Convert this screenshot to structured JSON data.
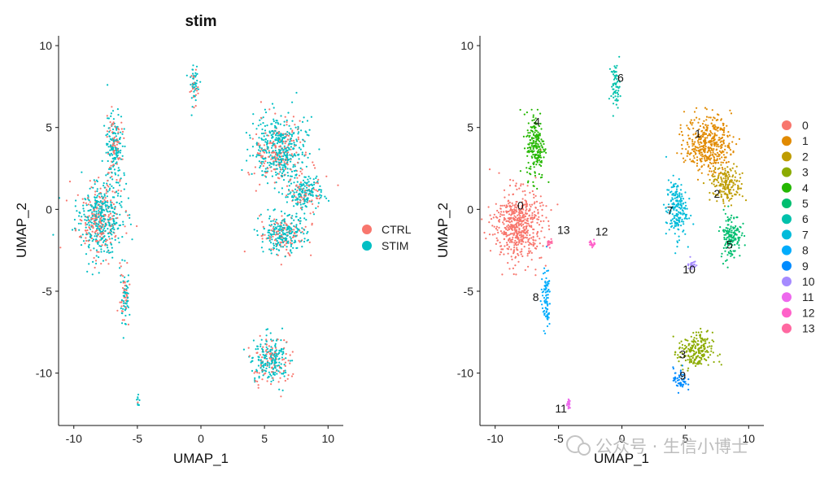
{
  "chart_data": [
    {
      "type": "scatter",
      "title": "stim",
      "xlabel": "UMAP_1",
      "ylabel": "UMAP_2",
      "xlim": [
        -11.2,
        11.2
      ],
      "ylim": [
        -13.2,
        10.6
      ],
      "xticks": [
        -10,
        -5,
        0,
        5,
        10
      ],
      "yticks": [
        -10,
        -5,
        0,
        5,
        10
      ],
      "xtick_labels": [
        "-10",
        "-5",
        "0",
        "5",
        "10"
      ],
      "ytick_labels": [
        "-10",
        "-5",
        "0",
        "5",
        "10"
      ],
      "grid": false,
      "legend_position": "right",
      "legend": [
        {
          "label": "CTRL",
          "color": "#F8766D"
        },
        {
          "label": "STIM",
          "color": "#00BFC4"
        }
      ],
      "regions": [
        {
          "name": "left-mass",
          "cx": -8.0,
          "cy": -0.6,
          "rx": 2.0,
          "ry": 2.5,
          "ctrl_share": 0.35
        },
        {
          "name": "left-upper-arm",
          "cx": -6.8,
          "cy": 3.8,
          "rx": 0.8,
          "ry": 2.4,
          "ctrl_share": 0.3
        },
        {
          "name": "left-tail",
          "cx": -6.0,
          "cy": -5.5,
          "rx": 0.4,
          "ry": 2.0,
          "ctrl_share": 0.4
        },
        {
          "name": "top-blob",
          "cx": -0.5,
          "cy": 7.6,
          "rx": 0.4,
          "ry": 1.4,
          "ctrl_share": 0.3
        },
        {
          "name": "right-upper",
          "cx": 6.2,
          "cy": 3.6,
          "rx": 2.2,
          "ry": 2.3,
          "ctrl_share": 0.3
        },
        {
          "name": "right-band",
          "cx": 8.2,
          "cy": 1.0,
          "rx": 1.5,
          "ry": 1.3,
          "ctrl_share": 0.3
        },
        {
          "name": "right-low",
          "cx": 6.5,
          "cy": -1.5,
          "rx": 2.0,
          "ry": 1.4,
          "ctrl_share": 0.3
        },
        {
          "name": "bottom-cluster",
          "cx": 5.5,
          "cy": -9.2,
          "rx": 1.6,
          "ry": 1.6,
          "ctrl_share": 0.35
        },
        {
          "name": "small-bottom",
          "cx": -4.9,
          "cy": -11.8,
          "rx": 0.2,
          "ry": 0.4,
          "ctrl_share": 0.3
        }
      ]
    },
    {
      "type": "scatter",
      "title": "",
      "xlabel": "UMAP_1",
      "ylabel": "UMAP_2",
      "xlim": [
        -11.2,
        11.2
      ],
      "ylim": [
        -13.2,
        10.6
      ],
      "xticks": [
        -10,
        -5,
        0,
        5,
        10
      ],
      "yticks": [
        -10,
        -5,
        0,
        5,
        10
      ],
      "xtick_labels": [
        "-10",
        "-5",
        "0",
        "5",
        "10"
      ],
      "ytick_labels": [
        "-10",
        "-5",
        "0",
        "5",
        "10"
      ],
      "grid": false,
      "legend_position": "right",
      "legend": [
        {
          "label": "0",
          "color": "#F8766D"
        },
        {
          "label": "1",
          "color": "#E18A00"
        },
        {
          "label": "2",
          "color": "#BE9C00"
        },
        {
          "label": "3",
          "color": "#8CAB00"
        },
        {
          "label": "4",
          "color": "#24B700"
        },
        {
          "label": "5",
          "color": "#00BE70"
        },
        {
          "label": "6",
          "color": "#00C1AB"
        },
        {
          "label": "7",
          "color": "#00BBDA"
        },
        {
          "label": "8",
          "color": "#00ACFC"
        },
        {
          "label": "9",
          "color": "#008BFF"
        },
        {
          "label": "10",
          "color": "#A58AFF"
        },
        {
          "label": "11",
          "color": "#ED68ED"
        },
        {
          "label": "12",
          "color": "#FF61C9"
        },
        {
          "label": "13",
          "color": "#FF68A1"
        }
      ],
      "clusters": [
        {
          "id": "0",
          "cx": -8.2,
          "cy": -1.0,
          "rx": 2.1,
          "ry": 2.4,
          "label_x": -8.0,
          "label_y": 0.0
        },
        {
          "id": "1",
          "cx": 6.8,
          "cy": 4.0,
          "rx": 2.0,
          "ry": 1.9,
          "label_x": 6.0,
          "label_y": 4.4
        },
        {
          "id": "2",
          "cx": 8.3,
          "cy": 1.5,
          "rx": 1.4,
          "ry": 1.2,
          "label_x": 7.5,
          "label_y": 0.7
        },
        {
          "id": "3",
          "cx": 5.8,
          "cy": -8.7,
          "rx": 1.5,
          "ry": 1.3,
          "label_x": 4.8,
          "label_y": -9.1
        },
        {
          "id": "4",
          "cx": -6.8,
          "cy": 3.9,
          "rx": 0.8,
          "ry": 2.3,
          "label_x": -6.7,
          "label_y": 5.1
        },
        {
          "id": "5",
          "cx": 8.6,
          "cy": -1.6,
          "rx": 0.9,
          "ry": 1.6,
          "label_x": 8.5,
          "label_y": -2.4
        },
        {
          "id": "6",
          "cx": -0.5,
          "cy": 7.6,
          "rx": 0.4,
          "ry": 1.4,
          "label_x": -0.1,
          "label_y": 7.8
        },
        {
          "id": "7",
          "cx": 4.3,
          "cy": 0.0,
          "rx": 0.9,
          "ry": 2.0,
          "label_x": 3.8,
          "label_y": -0.3
        },
        {
          "id": "8",
          "cx": -6.0,
          "cy": -5.5,
          "rx": 0.4,
          "ry": 2.0,
          "label_x": -6.8,
          "label_y": -5.6
        },
        {
          "id": "9",
          "cx": 4.6,
          "cy": -10.4,
          "rx": 0.6,
          "ry": 0.8,
          "label_x": 4.8,
          "label_y": -10.4
        },
        {
          "id": "10",
          "cx": 5.5,
          "cy": -3.3,
          "rx": 0.4,
          "ry": 0.6,
          "label_x": 5.3,
          "label_y": -3.9
        },
        {
          "id": "11",
          "cx": -4.2,
          "cy": -11.9,
          "rx": 0.15,
          "ry": 0.3,
          "label_x": -4.8,
          "label_y": -12.4
        },
        {
          "id": "12",
          "cx": -2.3,
          "cy": -2.1,
          "rx": 0.3,
          "ry": 0.25,
          "label_x": -1.6,
          "label_y": -1.6
        },
        {
          "id": "13",
          "cx": -5.7,
          "cy": -2.0,
          "rx": 0.25,
          "ry": 0.25,
          "label_x": -4.6,
          "label_y": -1.5
        }
      ]
    }
  ],
  "watermark": "公众号 · 生信小博士"
}
